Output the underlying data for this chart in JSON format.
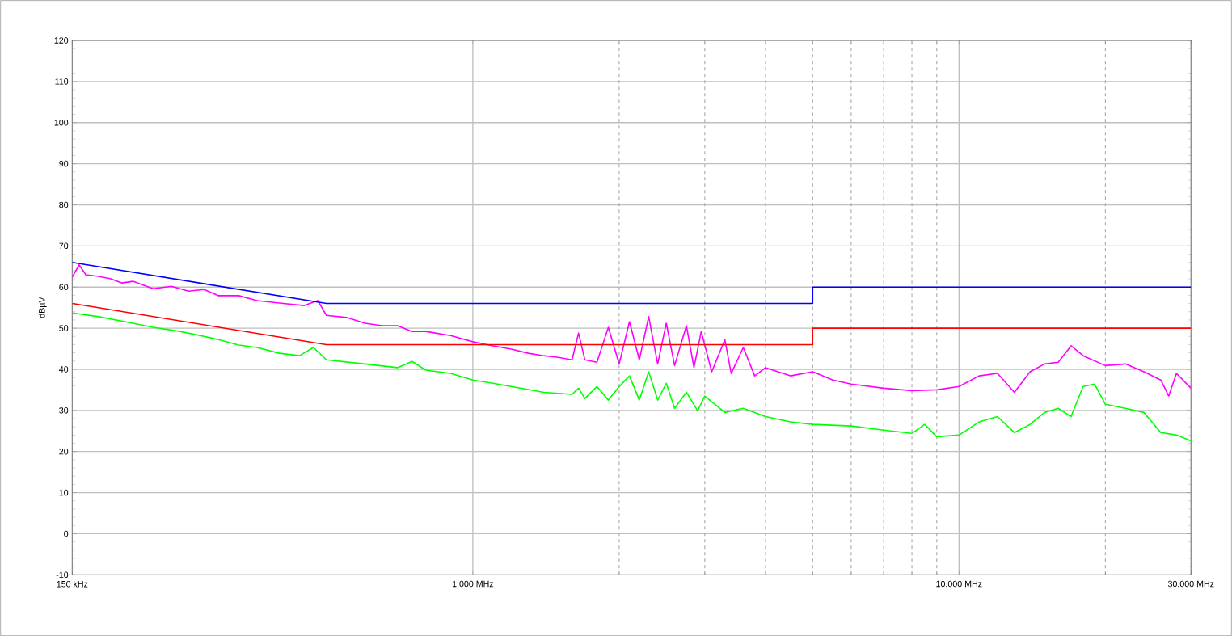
{
  "chart_data": {
    "type": "line",
    "ylabel": "dBµV",
    "log": "x",
    "grid": true,
    "line_style": "solid",
    "marker": "none",
    "xlim": [
      150,
      30000
    ],
    "ylim": [
      -10,
      120
    ],
    "xticks": [
      {
        "value": 150,
        "label": "150 kHz"
      },
      {
        "value": 1000,
        "label": "1.000 MHz"
      },
      {
        "value": 2000,
        "label": null
      },
      {
        "value": 3000,
        "label": null
      },
      {
        "value": 4000,
        "label": null
      },
      {
        "value": 5000,
        "label": null
      },
      {
        "value": 6000,
        "label": null
      },
      {
        "value": 7000,
        "label": null
      },
      {
        "value": 8000,
        "label": null
      },
      {
        "value": 9000,
        "label": null
      },
      {
        "value": 10000,
        "label": "10.000 MHz"
      },
      {
        "value": 20000,
        "label": null
      },
      {
        "value": 30000,
        "label": "30.000 MHz"
      }
    ],
    "yticks": [
      -10,
      0,
      10,
      20,
      30,
      40,
      50,
      60,
      70,
      80,
      90,
      100,
      110,
      120
    ],
    "series": [
      {
        "color": "#ff00ff",
        "x": [
          150,
          155,
          160,
          170,
          180,
          190,
          200,
          220,
          240,
          260,
          280,
          300,
          330,
          360,
          400,
          450,
          480,
          500,
          550,
          600,
          650,
          700,
          750,
          800,
          900,
          1000,
          1100,
          1200,
          1300,
          1400,
          1500,
          1600,
          1650,
          1700,
          1800,
          1900,
          2000,
          2100,
          2200,
          2300,
          2400,
          2500,
          2600,
          2750,
          2850,
          2950,
          3100,
          3300,
          3400,
          3600,
          3800,
          4000,
          4500,
          5000,
          5500,
          6000,
          7000,
          8000,
          9000,
          10000,
          11000,
          12000,
          13000,
          14000,
          15000,
          16000,
          17000,
          18000,
          20000,
          22000,
          24000,
          26000,
          27000,
          28000,
          30000
        ],
        "values": [
          62.4,
          65.4,
          63,
          62.6,
          62,
          61,
          61.4,
          59.6,
          60.2,
          59,
          59.4,
          57.9,
          57.9,
          56.7,
          56.1,
          55.5,
          56.7,
          53.1,
          52.6,
          51.2,
          50.6,
          50.6,
          49.2,
          49.2,
          48.2,
          46.7,
          45.7,
          44.9,
          43.9,
          43.3,
          42.9,
          42.3,
          48.8,
          42.3,
          41.7,
          50.2,
          41.3,
          51.6,
          42.3,
          52.8,
          41.3,
          51.2,
          40.9,
          50.6,
          40.4,
          49.2,
          39.4,
          47.2,
          39,
          45.3,
          38.4,
          40.4,
          38.4,
          39.4,
          37.4,
          36.4,
          35.4,
          34.8,
          35,
          35.8,
          38.4,
          39,
          34.4,
          39.4,
          41.3,
          41.7,
          45.7,
          43.3,
          40.9,
          41.3,
          39.4,
          37.4,
          33.5,
          39,
          35.4
        ]
      },
      {
        "color": "#00ff00",
        "x": [
          150,
          170,
          200,
          220,
          250,
          280,
          300,
          330,
          360,
          400,
          440,
          470,
          500,
          600,
          700,
          750,
          800,
          900,
          1000,
          1100,
          1200,
          1400,
          1600,
          1650,
          1700,
          1800,
          1900,
          2000,
          2100,
          2200,
          2300,
          2400,
          2500,
          2600,
          2750,
          2900,
          3000,
          3300,
          3600,
          4000,
          4500,
          5000,
          6000,
          7000,
          8000,
          8500,
          9000,
          10000,
          11000,
          12000,
          13000,
          14000,
          15000,
          16000,
          17000,
          18000,
          19000,
          20000,
          22000,
          24000,
          26000,
          28000,
          30000
        ],
        "values": [
          53.7,
          52.8,
          51.2,
          50.2,
          49.2,
          48,
          47.2,
          45.9,
          45.3,
          43.9,
          43.3,
          45.3,
          42.3,
          41.3,
          40.4,
          41.9,
          39.8,
          39,
          37.4,
          36.6,
          35.8,
          34.4,
          33.9,
          35.4,
          32.9,
          35.8,
          32.5,
          35.8,
          38.4,
          32.5,
          39.4,
          32.5,
          36.6,
          30.5,
          34.4,
          29.9,
          33.5,
          29.5,
          30.5,
          28.5,
          27.2,
          26.6,
          26.2,
          25.2,
          24.4,
          26.6,
          23.6,
          24,
          27.2,
          28.5,
          24.6,
          26.6,
          29.5,
          30.5,
          28.5,
          35.8,
          36.4,
          31.5,
          30.5,
          29.5,
          24.6,
          24,
          22.6
        ]
      },
      {
        "color": "#0000ff",
        "x": [
          150,
          500,
          5000,
          5000,
          30000
        ],
        "values": [
          66,
          56,
          56,
          60,
          60
        ]
      },
      {
        "color": "#ff0000",
        "x": [
          150,
          500,
          5000,
          5000,
          30000
        ],
        "values": [
          56,
          46,
          46,
          50,
          50
        ]
      }
    ]
  }
}
